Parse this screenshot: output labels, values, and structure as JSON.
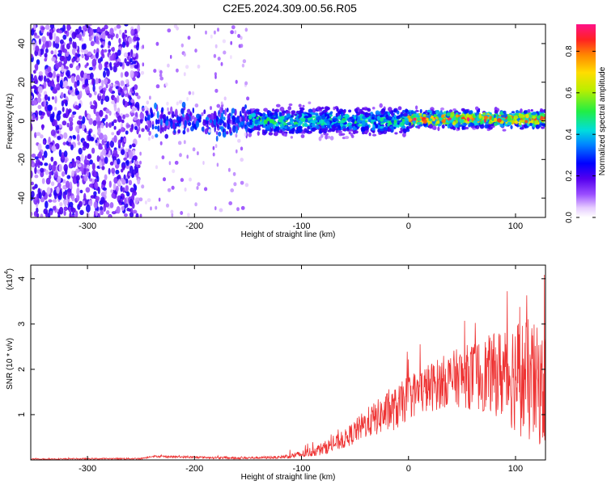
{
  "chart_data": [
    {
      "type": "heatmap",
      "title": "C2E5.2024.309.00.56.R05",
      "xlabel": "Height of straight line (km)",
      "ylabel": "Frequency (Hz)",
      "xlim": [
        -353,
        128
      ],
      "ylim": [
        -50,
        50
      ],
      "xticks": [
        "-300",
        "-200",
        "-100",
        "0",
        "100"
      ],
      "yticks": [
        "-40",
        "-20",
        "0",
        "20",
        "40"
      ],
      "colorbar": {
        "label": "Normalized spectral amplitude",
        "range": [
          0,
          0.93
        ],
        "ticks": [
          "0.0",
          "0.2",
          "0.4",
          "0.6",
          "0.8"
        ]
      },
      "description_regions": [
        {
          "x_range": [
            -353,
            -252
          ],
          "freq_spread": "full range -50 to 50",
          "amplitude": [
            0.05,
            0.25
          ]
        },
        {
          "x_range": [
            -252,
            -150
          ],
          "freq_spread": "-15 to 15, sparse streaks to -50/50",
          "amplitude": [
            0.05,
            0.3
          ]
        },
        {
          "x_range": [
            -150,
            0
          ],
          "freq_center": 0,
          "freq_half_width": 8,
          "amplitude": [
            0.2,
            0.5
          ]
        },
        {
          "x_range": [
            0,
            128
          ],
          "freq_center": 1,
          "freq_half_width": 5,
          "amplitude": [
            0.3,
            0.9
          ]
        }
      ]
    },
    {
      "type": "line",
      "xlabel": "Height of straight line (km)",
      "ylabel": "SNR (10 * v/v)",
      "scale_label": "(x10",
      "scale_exp": "4",
      "xlim": [
        -353,
        128
      ],
      "ylim": [
        0,
        4.3
      ],
      "xticks": [
        "-300",
        "-200",
        "-100",
        "0",
        "100"
      ],
      "yticks": [
        "1",
        "2",
        "3",
        "4"
      ],
      "series": [
        {
          "color": "#ee3333",
          "envelope_points": [
            [
              -353,
              0.02
            ],
            [
              -250,
              0.03
            ],
            [
              -240,
              0.08
            ],
            [
              -200,
              0.06
            ],
            [
              -160,
              0.04
            ],
            [
              -120,
              0.06
            ],
            [
              -100,
              0.12
            ],
            [
              -80,
              0.25
            ],
            [
              -60,
              0.45
            ],
            [
              -40,
              0.8
            ],
            [
              -20,
              1.05
            ],
            [
              -10,
              1.15
            ],
            [
              0,
              1.4
            ],
            [
              20,
              1.6
            ],
            [
              40,
              1.8
            ],
            [
              60,
              1.85
            ],
            [
              80,
              1.9
            ],
            [
              100,
              1.9
            ],
            [
              115,
              1.7
            ],
            [
              128,
              1.5
            ]
          ],
          "noise_amplitude": [
            [
              -353,
              0.01
            ],
            [
              -120,
              0.03
            ],
            [
              -60,
              0.2
            ],
            [
              -20,
              0.45
            ],
            [
              0,
              0.5
            ],
            [
              40,
              0.6
            ],
            [
              80,
              0.9
            ],
            [
              100,
              1.3
            ],
            [
              115,
              1.4
            ],
            [
              128,
              1.2
            ]
          ]
        }
      ]
    }
  ]
}
